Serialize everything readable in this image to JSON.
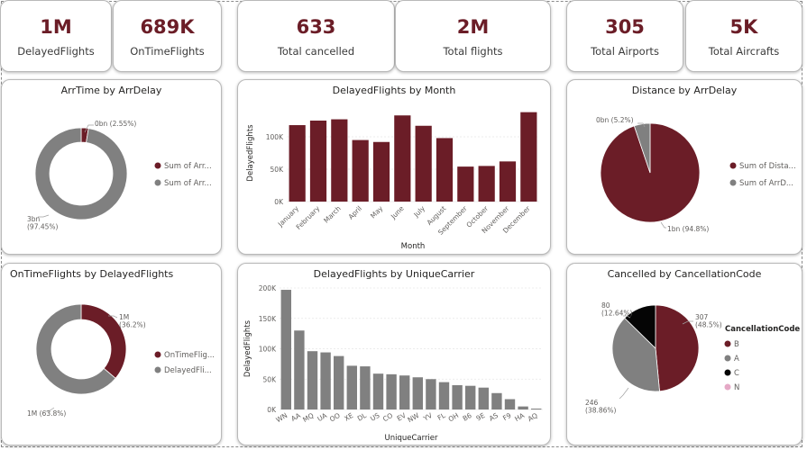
{
  "colors": {
    "maroon": "#6b1d27",
    "gray": "#808080",
    "black": "#050505",
    "pink": "#e5a9c6",
    "kpi_text": "#6b1d27"
  },
  "kpis": [
    {
      "value": "1M",
      "label": "DelayedFlights"
    },
    {
      "value": "689K",
      "label": "OnTimeFlights"
    },
    {
      "value": "633",
      "label": "Total cancelled"
    },
    {
      "value": "2M",
      "label": "Total flights"
    },
    {
      "value": "305",
      "label": "Total Airports"
    },
    {
      "value": "5K",
      "label": "Total Aircrafts"
    }
  ],
  "chart_data": [
    {
      "type": "pie",
      "variant": "donut",
      "title": "ArrTime by ArrDelay",
      "slices": [
        {
          "label": "Sum of Arr...",
          "value": 2.55,
          "data_label": "0bn (2.55%)",
          "color": "#6b1d27"
        },
        {
          "label": "Sum of Arr...",
          "value": 97.45,
          "data_label": "3bn\n(97.45%)",
          "color": "#808080"
        }
      ],
      "legend": "right"
    },
    {
      "type": "bar",
      "title": "DelayedFlights by Month",
      "xlabel": "Month",
      "ylabel": "DelayedFlights",
      "categories": [
        "January",
        "February",
        "March",
        "April",
        "May",
        "June",
        "July",
        "August",
        "September",
        "October",
        "November",
        "December"
      ],
      "values": [
        118000,
        125000,
        127000,
        95000,
        92000,
        133000,
        117000,
        98000,
        54000,
        55000,
        62000,
        138000
      ],
      "yticks": [
        "0K",
        "50K",
        "100K"
      ],
      "ylim": [
        0,
        150000
      ],
      "color": "#6b1d27"
    },
    {
      "type": "pie",
      "title": "Distance by ArrDelay",
      "slices": [
        {
          "label": "Sum of Dista...",
          "value": 94.8,
          "data_label": "1bn (94.8%)",
          "color": "#6b1d27"
        },
        {
          "label": "Sum of ArrD...",
          "value": 5.2,
          "data_label": "0bn (5.2%)",
          "color": "#808080"
        }
      ],
      "legend": "right"
    },
    {
      "type": "pie",
      "variant": "donut",
      "title": "OnTimeFlights by DelayedFlights",
      "slices": [
        {
          "label": "OnTimeFlig...",
          "value": 36.2,
          "data_label": "1M\n(36.2%)",
          "color": "#6b1d27"
        },
        {
          "label": "DelayedFli...",
          "value": 63.8,
          "data_label": "1M (63.8%)",
          "color": "#808080"
        }
      ],
      "legend": "right"
    },
    {
      "type": "bar",
      "title": "DelayedFlights by UniqueCarrier",
      "xlabel": "UniqueCarrier",
      "ylabel": "DelayedFlights",
      "categories": [
        "WN",
        "AA",
        "MQ",
        "UA",
        "OO",
        "XE",
        "DL",
        "US",
        "CO",
        "EV",
        "NW",
        "YV",
        "FL",
        "OH",
        "B6",
        "9E",
        "AS",
        "F9",
        "HA",
        "AQ"
      ],
      "values": [
        197000,
        130000,
        96000,
        94000,
        88000,
        72000,
        71000,
        59000,
        58000,
        56000,
        53000,
        50000,
        45000,
        40000,
        39000,
        36000,
        27000,
        17000,
        5000,
        1500
      ],
      "yticks": [
        "0K",
        "50K",
        "100K",
        "150K",
        "200K"
      ],
      "ylim": [
        0,
        200000
      ],
      "color": "#808080"
    },
    {
      "type": "pie",
      "title": "Cancelled by CancellationCode",
      "legend_title": "CancellationCode",
      "slices": [
        {
          "label": "B",
          "value": 48.5,
          "data_label": "307\n(48.5%)",
          "color": "#6b1d27"
        },
        {
          "label": "A",
          "value": 38.86,
          "data_label": "246\n(38.86%)",
          "color": "#808080"
        },
        {
          "label": "C",
          "value": 12.64,
          "data_label": "80\n(12.64%)",
          "color": "#050505"
        },
        {
          "label": "N",
          "value": 0,
          "data_label": "",
          "color": "#e5a9c6"
        }
      ],
      "legend": "right"
    }
  ]
}
